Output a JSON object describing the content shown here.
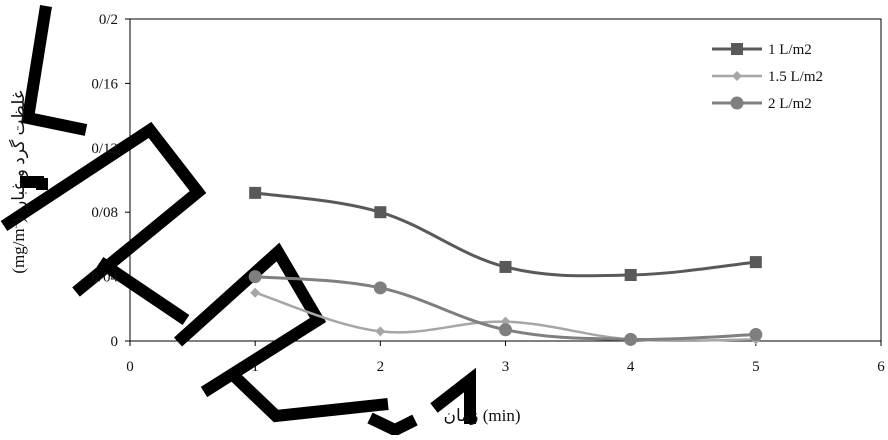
{
  "chart_data": {
    "type": "line",
    "title": "",
    "xlabel": "زمان (min)",
    "ylabel": "غلظت گرد و غبار (mg/m3)",
    "ylabel_unit_base": "(mg/m",
    "ylabel_unit_exp": "3",
    "ylabel_unit_close": ")",
    "ylabel_text": "غلظت گرد و غبار",
    "xlim": [
      0,
      6
    ],
    "ylim": [
      0,
      0.2
    ],
    "x_ticks": [
      0,
      1,
      2,
      3,
      4,
      5,
      6
    ],
    "x_tick_labels": [
      "0",
      "1",
      "2",
      "3",
      "4",
      "5",
      "6"
    ],
    "y_ticks": [
      0,
      0.04,
      0.08,
      0.12,
      0.16,
      0.2
    ],
    "y_tick_labels": [
      "0",
      "0/04",
      "0/08",
      "0/12",
      "0/16",
      "0/2"
    ],
    "grid": false,
    "legend_position": "top-right",
    "smooth": true,
    "x": [
      1,
      2,
      3,
      4,
      5
    ],
    "series": [
      {
        "name": "1 L/m2",
        "marker": "square",
        "color": "#595959",
        "values": [
          0.092,
          0.08,
          0.046,
          0.041,
          0.049
        ]
      },
      {
        "name": "1.5 L/m2",
        "marker": "diamond",
        "color": "#a6a6a6",
        "values": [
          0.03,
          0.006,
          0.012,
          0.001,
          0.001
        ]
      },
      {
        "name": "2 L/m2",
        "marker": "circle",
        "color": "#7f7f7f",
        "values": [
          0.04,
          0.033,
          0.007,
          0.001,
          0.004
        ]
      }
    ]
  },
  "colors": {
    "axis": "#000000",
    "frame": "#000000",
    "watermark": "#000000"
  },
  "watermark": {
    "type": "decorative-stroke-letters"
  }
}
